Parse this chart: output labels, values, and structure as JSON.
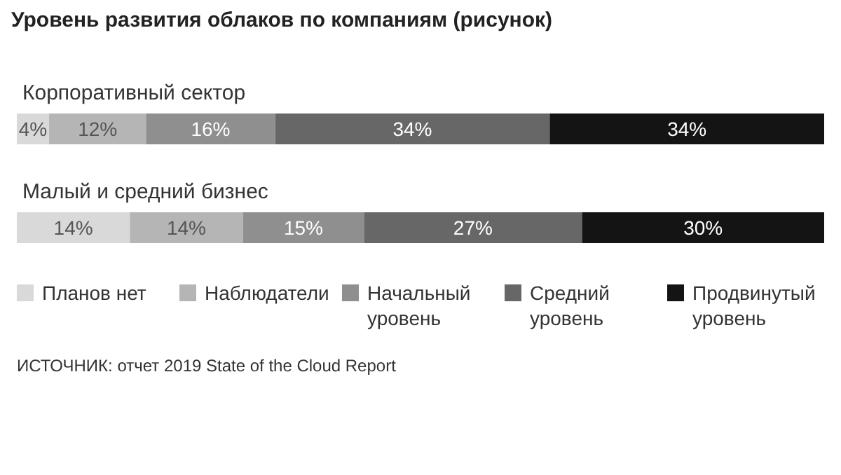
{
  "chart_data": {
    "type": "bar",
    "orientation": "horizontal",
    "stacked": true,
    "title": "Уровень развития облаков по компаниям (рисунок)",
    "categories": [
      "Корпоративный сектор",
      "Малый и средний бизнес"
    ],
    "series": [
      {
        "name": "Планов нет",
        "color": "#d9d9d9",
        "values": [
          4,
          14
        ],
        "value_labels": [
          "4%",
          "14%"
        ]
      },
      {
        "name": "Наблюдатели",
        "color": "#b5b5b5",
        "values": [
          12,
          14
        ],
        "value_labels": [
          "12%",
          "14%"
        ]
      },
      {
        "name": "Начальный уровень",
        "color": "#8f8f8f",
        "values": [
          16,
          15
        ],
        "value_labels": [
          "16%",
          "15%"
        ]
      },
      {
        "name": "Средний уровень",
        "color": "#676767",
        "values": [
          34,
          27
        ],
        "value_labels": [
          "34%",
          "27%"
        ]
      },
      {
        "name": "Продвинутый уровень",
        "color": "#141414",
        "values": [
          34,
          30
        ],
        "value_labels": [
          "34%",
          "30%"
        ]
      }
    ],
    "grid": false,
    "legend": "bottom",
    "annotations": [
      "ИСТОЧНИК: отчет 2019 State of the Cloud Report"
    ]
  }
}
